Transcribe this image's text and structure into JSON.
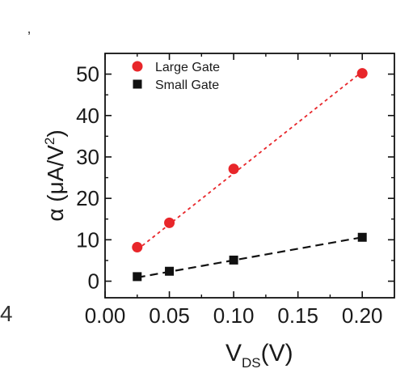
{
  "stray_marks": {
    "top": "’",
    "left": "4"
  },
  "chart_data": {
    "type": "scatter",
    "x_label": {
      "main": "V",
      "sub": "DS",
      "unit": "(V)"
    },
    "y_label": {
      "main": "α (μA/V",
      "sup": "2",
      "end": ")"
    },
    "xlim": [
      0.0,
      0.225
    ],
    "ylim": [
      -4,
      55
    ],
    "x_ticks": [
      "0.00",
      "0.05",
      "0.10",
      "0.15",
      "0.20"
    ],
    "y_ticks": [
      "0",
      "10",
      "20",
      "30",
      "40",
      "50"
    ],
    "series": [
      {
        "name": "Large Gate",
        "marker": "circle",
        "color": "#e8262a",
        "fit_line": "dotted",
        "x": [
          0.025,
          0.05,
          0.1,
          0.2
        ],
        "y": [
          8.2,
          14.1,
          27.1,
          50.2
        ],
        "fit_range": [
          0.025,
          0.2
        ],
        "fit_y": [
          7.6,
          50.6
        ]
      },
      {
        "name": "Small Gate",
        "marker": "square",
        "color": "#111111",
        "fit_line": "dashed",
        "x": [
          0.025,
          0.05,
          0.1,
          0.2
        ],
        "y": [
          1.1,
          2.4,
          5.1,
          10.6
        ],
        "fit_range": [
          0.025,
          0.2
        ],
        "fit_y": [
          0.9,
          10.6
        ]
      }
    ],
    "legend_position": "top-left"
  }
}
